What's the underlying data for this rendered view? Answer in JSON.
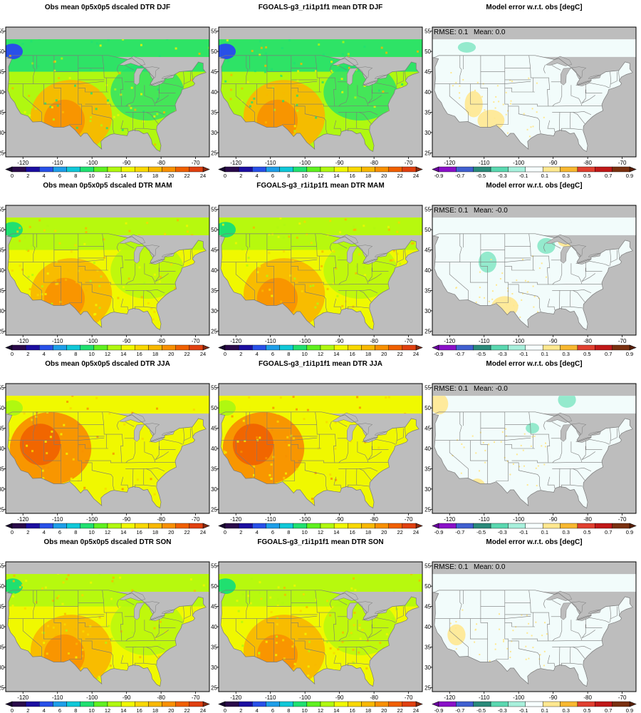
{
  "figure": {
    "seasons": [
      "DJF",
      "MAM",
      "JJA",
      "SON"
    ],
    "columns": [
      {
        "key": "obs",
        "title_prefix": "Obs mean 0p5x0p5 dscaled DTR",
        "colorbar": "dtr"
      },
      {
        "key": "model",
        "title_prefix": "FGOALS-g3_r1i1p1f1 mean DTR",
        "colorbar": "dtr"
      },
      {
        "key": "error",
        "title_prefix": "Model error w.r.t. obs [degC]",
        "colorbar": "err"
      }
    ],
    "panel_titles": [
      [
        "Obs mean 0p5x0p5 dscaled DTR DJF",
        "FGOALS-g3_r1i1p1f1 mean DTR DJF",
        "Model error w.r.t. obs [degC]"
      ],
      [
        "Obs mean 0p5x0p5 dscaled DTR MAM",
        "FGOALS-g3_r1i1p1f1 mean DTR MAM",
        "Model error w.r.t. obs [degC]"
      ],
      [
        "Obs mean 0p5x0p5 dscaled DTR JJA",
        "FGOALS-g3_r1i1p1f1 mean DTR JJA",
        "Model error w.r.t. obs [degC]"
      ],
      [
        "Obs mean 0p5x0p5 dscaled DTR SON",
        "FGOALS-g3_r1i1p1f1 mean DTR SON",
        "Model error w.r.t. obs [degC]"
      ]
    ],
    "stats": [
      {
        "rmse_label": "RMSE: 0.1",
        "mean_label": "Mean: 0.0"
      },
      {
        "rmse_label": "RMSE: 0.1",
        "mean_label": "Mean: -0.0"
      },
      {
        "rmse_label": "RMSE: 0.1",
        "mean_label": "Mean: -0.0"
      },
      {
        "rmse_label": "RMSE: 0.1",
        "mean_label": "Mean: 0.0"
      }
    ],
    "lon_ticks": [
      -120,
      -110,
      -100,
      -90,
      -80,
      -70
    ],
    "lat_ticks": [
      25,
      30,
      35,
      40,
      45,
      50,
      55
    ],
    "lon_range": [
      -125,
      -66
    ],
    "lat_range": [
      24,
      56
    ]
  },
  "colorbars": {
    "dtr": {
      "labels": [
        "0",
        "2",
        "4",
        "6",
        "8",
        "10",
        "12",
        "14",
        "16",
        "18",
        "20",
        "22",
        "24"
      ],
      "colors": [
        "#2a0a4a",
        "#1c0ea0",
        "#2850e8",
        "#1e9ee8",
        "#10c8d8",
        "#20e070",
        "#60f020",
        "#b0f810",
        "#f0f800",
        "#f8d800",
        "#f8b800",
        "#f89000",
        "#f06000",
        "#e04010"
      ],
      "end_low": "#180830",
      "end_high": "#8a2a10"
    },
    "err": {
      "labels": [
        "-0.9",
        "-0.7",
        "-0.5",
        "-0.3",
        "-0.1",
        "0.1",
        "0.3",
        "0.5",
        "0.7",
        "0.9"
      ],
      "colors": [
        "#8a10c8",
        "#4060d0",
        "#2a8a7a",
        "#5ad8b0",
        "#a8f0dc",
        "#f8ffff",
        "#ffe890",
        "#f8b830",
        "#e04030",
        "#c01818",
        "#7a3010"
      ],
      "end_low": "#6a00a0",
      "end_high": "#5a2008"
    }
  },
  "colors": {
    "ocean": "#bdbdbd",
    "error_background": "#f2fcfb",
    "border": "#7a7a7a",
    "frame": "#000000"
  }
}
